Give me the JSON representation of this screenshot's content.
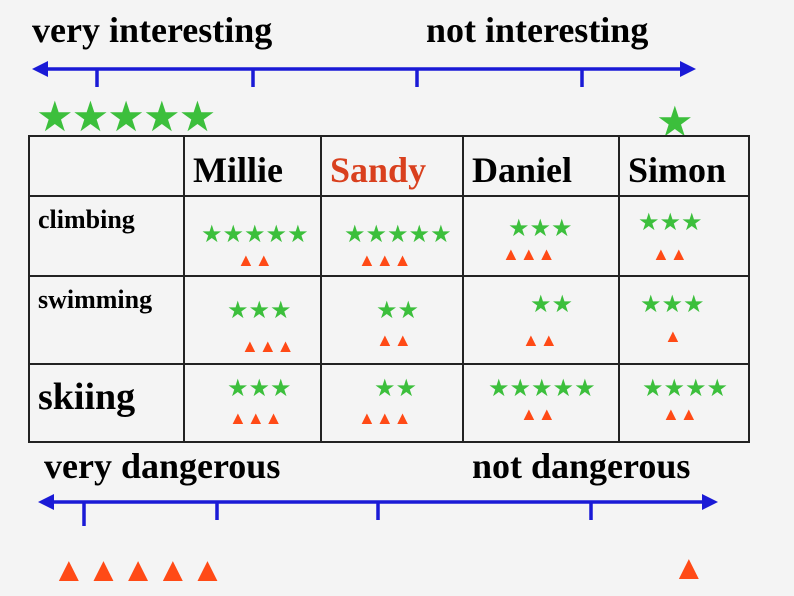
{
  "colors": {
    "star": "#3cbf3c",
    "triangle": "#ff4a16",
    "scale_line": "#1a1ad6"
  },
  "top_scale": {
    "left_label": "very interesting",
    "right_label": "not interesting",
    "left_icons": "★★★★★",
    "right_icons": "★"
  },
  "bottom_scale": {
    "left_label": "very dangerous",
    "right_label": "not dangerous",
    "left_icons": "▲▲▲▲▲",
    "right_icons": "▲"
  },
  "table": {
    "people": [
      "Millie",
      "Sandy",
      "Daniel",
      "Simon"
    ],
    "rows": [
      {
        "activity": "climbing",
        "cells": [
          {
            "stars": "★★★★★",
            "triangles": "▲▲"
          },
          {
            "stars": "★★★★★",
            "triangles": "▲▲▲"
          },
          {
            "stars": "★★★",
            "triangles": "▲▲▲"
          },
          {
            "stars": "★★★",
            "triangles": "▲▲"
          }
        ]
      },
      {
        "activity": "swimming",
        "cells": [
          {
            "stars": "★★★",
            "triangles": "▲▲▲"
          },
          {
            "stars": "★★",
            "triangles": "▲▲"
          },
          {
            "stars": "★★",
            "triangles": "▲▲"
          },
          {
            "stars": "★★★",
            "triangles": "▲"
          }
        ]
      },
      {
        "activity": "skiing",
        "cells": [
          {
            "stars": "★★★",
            "triangles": "▲▲▲"
          },
          {
            "stars": "★★",
            "triangles": "▲▲▲"
          },
          {
            "stars": "★★★★★",
            "triangles": "▲▲"
          },
          {
            "stars": "★★★★",
            "triangles": "▲▲"
          }
        ]
      }
    ]
  }
}
